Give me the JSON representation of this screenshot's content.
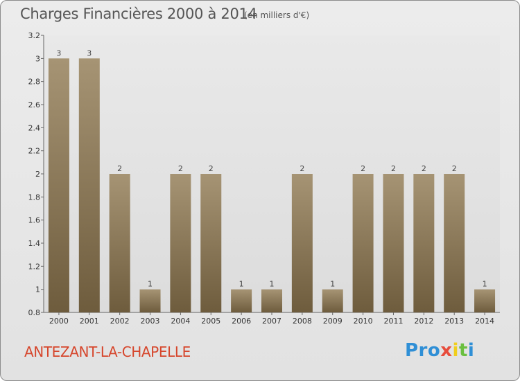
{
  "header": {
    "title": "Charges Financières 2000 à 2014",
    "units": "(en milliers d'€)"
  },
  "footer": {
    "town": "ANTEZANT-LA-CHAPELLE",
    "logo": [
      "Pro",
      "x",
      "i",
      "t",
      "i"
    ]
  },
  "colors": {
    "bar_light": "#a69474",
    "bar_dark": "#6e5c3d",
    "title": "#555555",
    "town": "#d6462c"
  },
  "chart_data": {
    "type": "bar",
    "title": "Charges Financières 2000 à 2014",
    "subtitle": "(en milliers d'€)",
    "xlabel": "",
    "ylabel": "",
    "categories": [
      "2000",
      "2001",
      "2002",
      "2003",
      "2004",
      "2005",
      "2006",
      "2007",
      "2008",
      "2009",
      "2010",
      "2011",
      "2012",
      "2013",
      "2014"
    ],
    "values": [
      3,
      3,
      2,
      1,
      2,
      2,
      1,
      1,
      2,
      1,
      2,
      2,
      2,
      2,
      1
    ],
    "ylim": [
      0.8,
      3.2
    ],
    "yticks": [
      0.8,
      1,
      1.2,
      1.4,
      1.6,
      1.8,
      2,
      2.2,
      2.4,
      2.6,
      2.8,
      3,
      3.2
    ],
    "ytick_labels": [
      "0.8",
      "1",
      "1.2",
      "1.4",
      "1.6",
      "1.8",
      "2",
      "2.2",
      "2.4",
      "2.6",
      "2.8",
      "3",
      "3.2"
    ],
    "grid": false,
    "data_labels": true
  }
}
